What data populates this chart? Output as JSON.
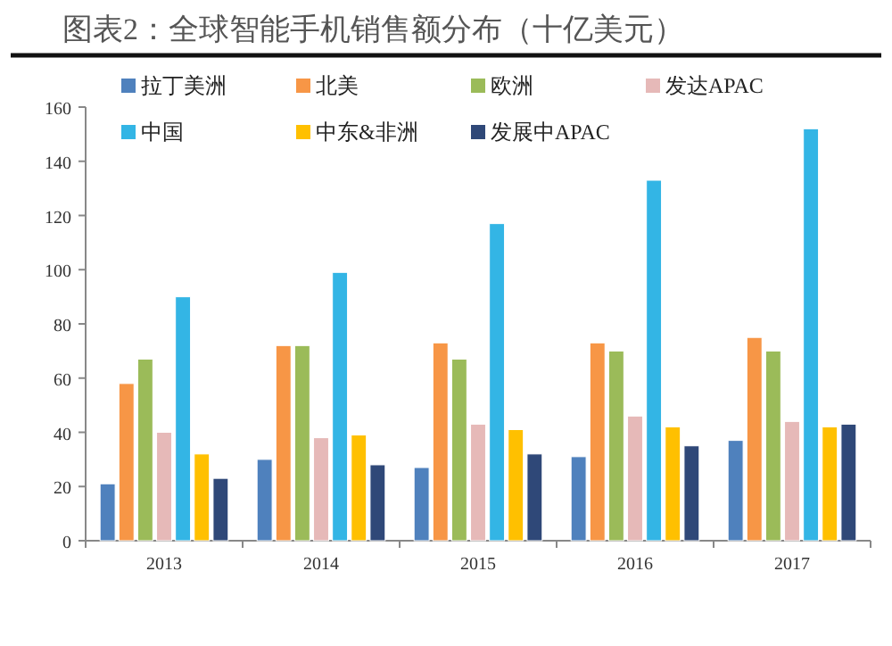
{
  "chart_data": {
    "type": "bar",
    "title": "图表2：全球智能手机销售额分布（十亿美元）",
    "categories": [
      "2013",
      "2014",
      "2015",
      "2016",
      "2017"
    ],
    "series": [
      {
        "name": "拉丁美洲",
        "color": "#4f81bd",
        "values": [
          21,
          30,
          27,
          31,
          37
        ]
      },
      {
        "name": "北美",
        "color": "#f79646",
        "values": [
          58,
          72,
          73,
          73,
          75
        ]
      },
      {
        "name": "欧洲",
        "color": "#9bbb59",
        "values": [
          67,
          72,
          67,
          70,
          70
        ]
      },
      {
        "name": "发达APAC",
        "color": "#e6b9b8",
        "values": [
          40,
          38,
          43,
          46,
          44
        ]
      },
      {
        "name": "中国",
        "color": "#33b5e5",
        "values": [
          90,
          99,
          117,
          133,
          152
        ]
      },
      {
        "name": "中东&非洲",
        "color": "#ffc000",
        "values": [
          32,
          39,
          41,
          42,
          42
        ]
      },
      {
        "name": "发展中APAC",
        "color": "#2f4878",
        "values": [
          23,
          28,
          32,
          35,
          43
        ]
      }
    ],
    "ylim": [
      0,
      160
    ],
    "yticks": [
      0,
      20,
      40,
      60,
      80,
      100,
      120,
      140,
      160
    ],
    "grid": false,
    "legend": "top"
  }
}
